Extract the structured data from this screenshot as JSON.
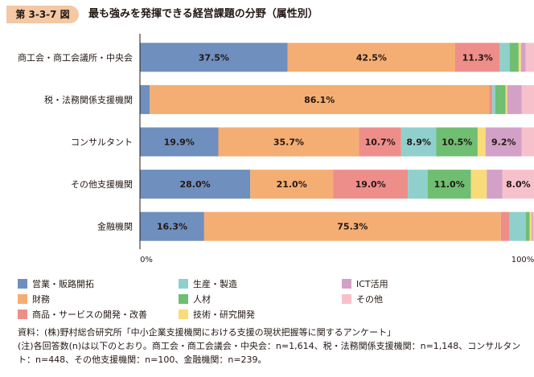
{
  "figure": {
    "number": "第 3-3-7 図",
    "title": "最も強みを発揮できる経営課題の分野（属性別）"
  },
  "chart_data": {
    "type": "bar",
    "orientation": "horizontal",
    "stacked": true,
    "categories": [
      "商工会・商工会議所・中央会",
      "税・法務関係支援機関",
      "コンサルタント",
      "その他支援機関",
      "金融機関"
    ],
    "series": [
      {
        "name": "営業・販路開拓",
        "color": "#6f8fbe",
        "values": [
          37.5,
          2.5,
          19.9,
          28.0,
          16.3
        ],
        "labels": [
          "37.5%",
          "",
          "19.9%",
          "28.0%",
          "16.3%"
        ]
      },
      {
        "name": "財務",
        "color": "#f4ae73",
        "values": [
          42.5,
          86.1,
          35.7,
          21.0,
          75.3
        ],
        "labels": [
          "42.5%",
          "86.1%",
          "35.7%",
          "21.0%",
          "75.3%"
        ]
      },
      {
        "name": "商品・サービスの開発・改善",
        "color": "#ee8e8a",
        "values": [
          11.3,
          0.8,
          10.7,
          19.0,
          2.2
        ],
        "labels": [
          "11.3%",
          "",
          "10.7%",
          "19.0%",
          ""
        ]
      },
      {
        "name": "生産・製造",
        "color": "#8fd0cc",
        "values": [
          2.5,
          0.8,
          8.9,
          5.0,
          4.1
        ],
        "labels": [
          "",
          "",
          "8.9%",
          "",
          ""
        ]
      },
      {
        "name": "人材",
        "color": "#6fbe72",
        "values": [
          2.3,
          2.6,
          10.5,
          11.0,
          1.0
        ],
        "labels": [
          "",
          "",
          "10.5%",
          "11.0%",
          ""
        ]
      },
      {
        "name": "技術・研究開発",
        "color": "#f9dc78",
        "values": [
          0.6,
          0.4,
          2.0,
          4.0,
          0.5
        ],
        "labels": [
          "",
          "",
          "",
          "",
          ""
        ]
      },
      {
        "name": "ICT活用",
        "color": "#d3a1c8",
        "values": [
          1.2,
          3.7,
          9.2,
          4.0,
          0.3
        ],
        "labels": [
          "",
          "",
          "9.2%",
          "",
          ""
        ]
      },
      {
        "name": "その他",
        "color": "#f7c1cb",
        "values": [
          2.1,
          3.1,
          3.1,
          8.0,
          0.3
        ],
        "labels": [
          "",
          "",
          "",
          "8.0%",
          ""
        ]
      }
    ],
    "xlim": [
      0,
      100
    ],
    "xtick_labels": [
      "0%",
      "100%"
    ],
    "legend_position": "bottom"
  },
  "legend_items": [
    {
      "label": "営業・販路開拓",
      "color": "#6f8fbe"
    },
    {
      "label": "財務",
      "color": "#f4ae73"
    },
    {
      "label": "商品・サービスの開発・改善",
      "color": "#ee8e8a"
    },
    {
      "label": "生産・製造",
      "color": "#8fd0cc"
    },
    {
      "label": "人材",
      "color": "#6fbe72"
    },
    {
      "label": "技術・研究開発",
      "color": "#f9dc78"
    },
    {
      "label": "ICT活用",
      "color": "#d3a1c8"
    },
    {
      "label": "その他",
      "color": "#f7c1cb"
    }
  ],
  "notes": {
    "source": "資料：(株)野村総合研究所「中小企業支援機関における支援の現状把握等に関するアンケート」",
    "note": "(注)各回答数(n)は以下のとおり。商工会・商工会議会・中央会：n=1,614、税・法務関係支援機関：n=1,148、コンサルタント：n=448、その他支援機関：n=100、金融機関：n=239。"
  }
}
